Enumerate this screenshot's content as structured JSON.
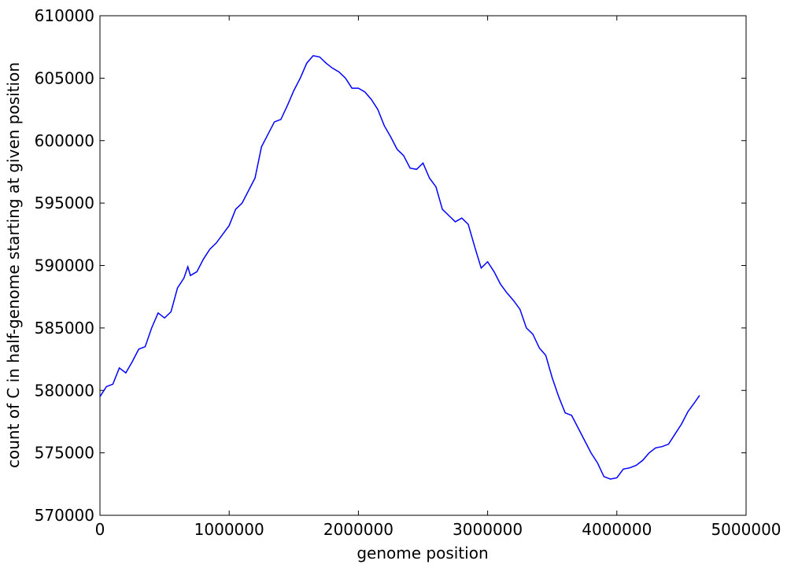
{
  "chart_data": {
    "type": "line",
    "xlabel": "genome position",
    "ylabel": "count of C in half-genome starting at given position",
    "xlim": [
      0,
      5000000
    ],
    "xticks": [
      0,
      1000000,
      2000000,
      3000000,
      4000000,
      5000000
    ],
    "ylim": [
      570000,
      610000
    ],
    "yticks": [
      570000,
      575000,
      580000,
      585000,
      590000,
      595000,
      600000,
      605000,
      610000
    ],
    "x": [
      0,
      50000,
      100000,
      150000,
      200000,
      250000,
      300000,
      350000,
      400000,
      450000,
      500000,
      550000,
      600000,
      650000,
      680000,
      700000,
      750000,
      800000,
      850000,
      900000,
      950000,
      1000000,
      1050000,
      1100000,
      1150000,
      1200000,
      1250000,
      1300000,
      1350000,
      1400000,
      1450000,
      1500000,
      1550000,
      1600000,
      1650000,
      1700000,
      1750000,
      1800000,
      1850000,
      1900000,
      1950000,
      2000000,
      2050000,
      2100000,
      2150000,
      2200000,
      2250000,
      2300000,
      2350000,
      2400000,
      2450000,
      2500000,
      2550000,
      2600000,
      2650000,
      2700000,
      2750000,
      2800000,
      2850000,
      2900000,
      2950000,
      3000000,
      3050000,
      3100000,
      3150000,
      3200000,
      3250000,
      3300000,
      3350000,
      3400000,
      3450000,
      3500000,
      3550000,
      3600000,
      3650000,
      3700000,
      3750000,
      3800000,
      3850000,
      3900000,
      3950000,
      4000000,
      4050000,
      4100000,
      4150000,
      4200000,
      4250000,
      4300000,
      4350000,
      4400000,
      4450000,
      4500000,
      4550000,
      4600000,
      4640000
    ],
    "series": [
      {
        "color": "#0000ff",
        "values": [
          579500,
          580300,
          580500,
          581800,
          581400,
          582300,
          583300,
          583500,
          585000,
          586200,
          585800,
          586300,
          588200,
          589000,
          589900,
          589200,
          589500,
          590500,
          591300,
          591800,
          592500,
          593200,
          594500,
          595000,
          596000,
          597000,
          599500,
          600500,
          601500,
          601700,
          602800,
          604000,
          605000,
          606200,
          606800,
          606700,
          606200,
          605800,
          605500,
          605000,
          604200,
          604200,
          603900,
          603300,
          602500,
          601200,
          600300,
          599300,
          598800,
          597800,
          597700,
          598200,
          597000,
          596300,
          594500,
          594000,
          593500,
          593800,
          593300,
          591500,
          589800,
          590300,
          589500,
          588500,
          587800,
          587200,
          586500,
          585000,
          584500,
          583400,
          582800,
          581000,
          579500,
          578200,
          578000,
          577000,
          576000,
          575000,
          574200,
          573100,
          572900,
          573000,
          573700,
          573800,
          574000,
          574400,
          575000,
          575400,
          575500,
          575700,
          576500,
          577300,
          578300,
          579000,
          579600
        ]
      }
    ]
  }
}
